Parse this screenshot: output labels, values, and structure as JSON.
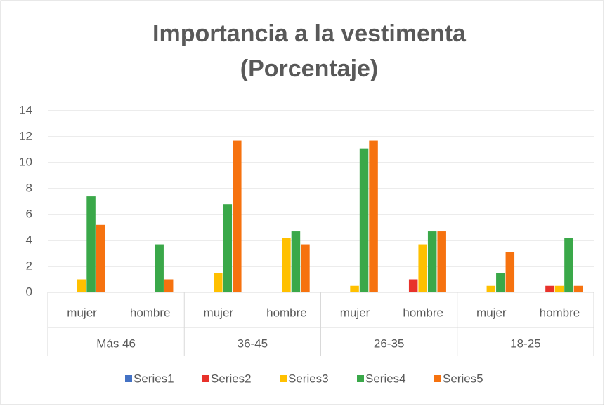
{
  "chart_data": {
    "type": "bar",
    "title": [
      "Importancia a la vestimenta",
      "(Porcentaje)"
    ],
    "categories": [
      "mujer",
      "hombre",
      "mujer",
      "hombre",
      "mujer",
      "hombre",
      "mujer",
      "hombre"
    ],
    "groups": [
      "Más 46",
      "36-45",
      "26-35",
      "18-25"
    ],
    "series": [
      {
        "name": "Series1",
        "color": "#4472c4",
        "values": [
          0,
          0,
          0,
          0,
          0,
          0,
          0,
          0
        ]
      },
      {
        "name": "Series2",
        "color": "#e8322b",
        "values": [
          0,
          0,
          0,
          0,
          0,
          1,
          0,
          0.5
        ]
      },
      {
        "name": "Series3",
        "color": "#ffc000",
        "values": [
          1,
          0,
          1.5,
          4.2,
          0.5,
          3.7,
          0.5,
          0.5
        ]
      },
      {
        "name": "Series4",
        "color": "#3aa849",
        "values": [
          7.4,
          3.7,
          6.8,
          4.7,
          11.1,
          4.7,
          1.5,
          4.2
        ]
      },
      {
        "name": "Series5",
        "color": "#f6720f",
        "values": [
          5.2,
          1,
          11.7,
          3.7,
          11.7,
          4.7,
          3.1,
          0.5
        ]
      }
    ],
    "ylim": [
      0,
      14
    ],
    "yticks": [
      0,
      2,
      4,
      6,
      8,
      10,
      12,
      14
    ],
    "grid": true,
    "legend": "bottom"
  }
}
